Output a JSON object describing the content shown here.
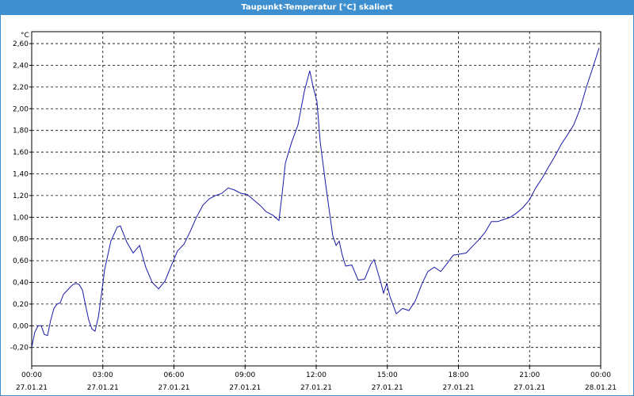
{
  "window_title": "Taupunkt-Temperatur [°C] skaliert",
  "chart_data": {
    "type": "line",
    "y_unit": "°C",
    "x": [
      0,
      0.13,
      0.27,
      0.4,
      0.53,
      0.67,
      0.8,
      0.94,
      1.07,
      1.2,
      1.34,
      1.6,
      1.74,
      1.87,
      2.0,
      2.14,
      2.27,
      2.41,
      2.54,
      2.67,
      2.81,
      2.94,
      3.08,
      3.34,
      3.61,
      3.74,
      4.01,
      4.28,
      4.55,
      4.81,
      5.08,
      5.35,
      5.62,
      5.88,
      6.15,
      6.42,
      6.69,
      6.95,
      7.22,
      7.49,
      7.75,
      8.02,
      8.29,
      8.56,
      8.82,
      9.09,
      9.36,
      9.63,
      9.89,
      10.16,
      10.43,
      10.56,
      10.7,
      10.96,
      11.23,
      11.5,
      11.73,
      11.87,
      12.03,
      12.17,
      12.3,
      12.43,
      12.57,
      12.7,
      12.84,
      12.97,
      13.1,
      13.24,
      13.5,
      13.77,
      14.04,
      14.31,
      14.44,
      14.71,
      14.84,
      14.97,
      15.11,
      15.38,
      15.64,
      15.91,
      16.18,
      16.45,
      16.71,
      16.98,
      17.25,
      17.51,
      17.78,
      18.05,
      18.32,
      18.58,
      18.85,
      19.12,
      19.39,
      19.65,
      19.92,
      20.19,
      20.46,
      20.72,
      20.99,
      21.26,
      21.53,
      21.79,
      22.06,
      22.33,
      22.6,
      22.86,
      23.13,
      23.4,
      23.67,
      23.93
    ],
    "series": [
      {
        "color": "#1a1aa8",
        "values": [
          -0.2,
          -0.06,
          0.0,
          0.0,
          -0.08,
          -0.09,
          0.05,
          0.16,
          0.2,
          0.21,
          0.29,
          0.35,
          0.38,
          0.39,
          0.38,
          0.33,
          0.19,
          0.05,
          -0.03,
          -0.05,
          0.08,
          0.29,
          0.52,
          0.78,
          0.91,
          0.92,
          0.77,
          0.67,
          0.74,
          0.54,
          0.4,
          0.34,
          0.41,
          0.55,
          0.69,
          0.75,
          0.87,
          1.0,
          1.11,
          1.17,
          1.2,
          1.22,
          1.27,
          1.25,
          1.22,
          1.21,
          1.16,
          1.11,
          1.05,
          1.02,
          0.97,
          1.21,
          1.5,
          1.69,
          1.85,
          2.16,
          2.35,
          2.2,
          2.07,
          1.69,
          1.47,
          1.25,
          1.03,
          0.83,
          0.74,
          0.78,
          0.65,
          0.55,
          0.56,
          0.42,
          0.43,
          0.57,
          0.61,
          0.41,
          0.3,
          0.39,
          0.27,
          0.11,
          0.16,
          0.14,
          0.23,
          0.38,
          0.5,
          0.54,
          0.5,
          0.57,
          0.65,
          0.66,
          0.67,
          0.73,
          0.79,
          0.86,
          0.96,
          0.96,
          0.98,
          1.0,
          1.04,
          1.09,
          1.16,
          1.27,
          1.36,
          1.46,
          1.56,
          1.67,
          1.76,
          1.85,
          2.0,
          2.2,
          2.38,
          2.56
        ]
      }
    ],
    "xlim": [
      0,
      24
    ],
    "xticks": [
      {
        "value": 0,
        "label": "00:00\n27.01.21"
      },
      {
        "value": 3,
        "label": "03:00\n27.01.21"
      },
      {
        "value": 6,
        "label": "06:00\n27.01.21"
      },
      {
        "value": 9,
        "label": "09:00\n27.01.21"
      },
      {
        "value": 12,
        "label": "12:00\n27.01.21"
      },
      {
        "value": 15,
        "label": "15:00\n27.01.21"
      },
      {
        "value": 18,
        "label": "18:00\n27.01.21"
      },
      {
        "value": 21,
        "label": "21:00\n27.01.21"
      },
      {
        "value": 24,
        "label": "00:00\n28.01.21"
      }
    ],
    "ylim": [
      -0.37,
      2.71
    ],
    "yticks": [
      {
        "value": -0.2,
        "label": "-0,20"
      },
      {
        "value": 0,
        "label": "0,00"
      },
      {
        "value": 0.2,
        "label": "0,20"
      },
      {
        "value": 0.4,
        "label": "0,40"
      },
      {
        "value": 0.6,
        "label": "0,60"
      },
      {
        "value": 0.8,
        "label": "0,80"
      },
      {
        "value": 1.0,
        "label": "1,00"
      },
      {
        "value": 1.2,
        "label": "1,20"
      },
      {
        "value": 1.4,
        "label": "1,40"
      },
      {
        "value": 1.6,
        "label": "1,60"
      },
      {
        "value": 1.8,
        "label": "1,80"
      },
      {
        "value": 2.0,
        "label": "2,00"
      },
      {
        "value": 2.2,
        "label": "2,20"
      },
      {
        "value": 2.4,
        "label": "2,40"
      },
      {
        "value": 2.6,
        "label": "2,60"
      }
    ],
    "grid": true
  }
}
